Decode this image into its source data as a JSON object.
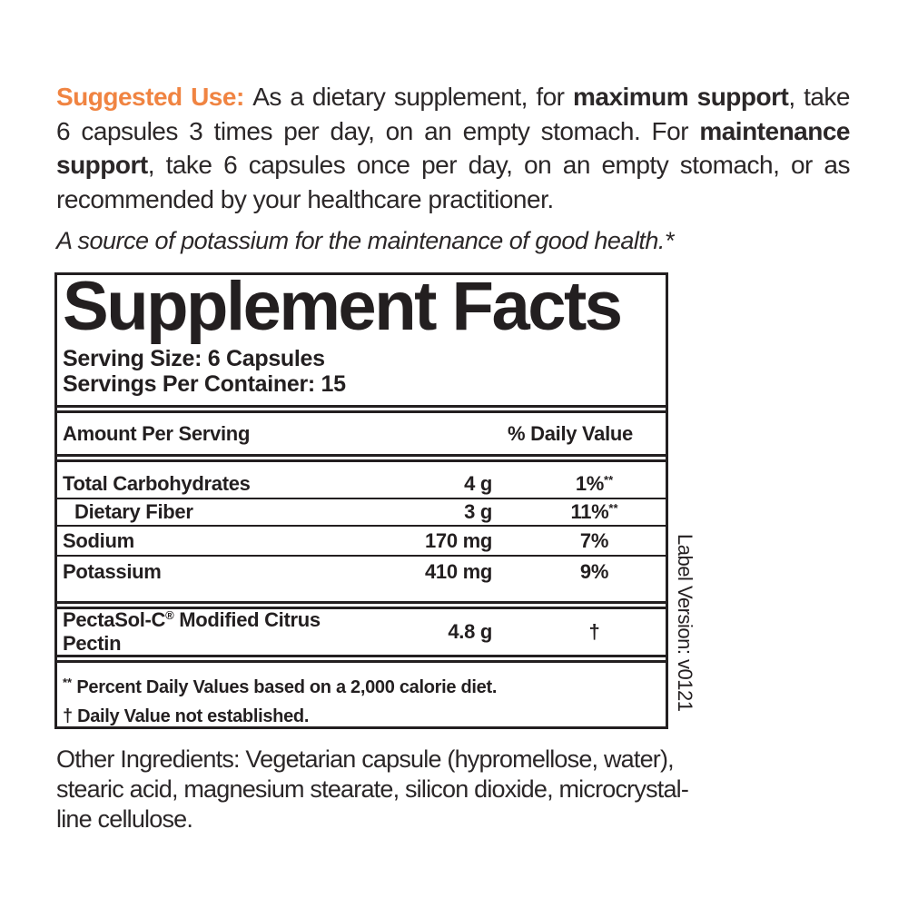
{
  "colors": {
    "accent_orange": "#f08442",
    "ink": "#231f20",
    "text": "#2b2728"
  },
  "suggested_use": {
    "lines": [
      {
        "segments": [
          {
            "text": "Suggested Use: "
          },
          {
            "text": "As a dietary supplement, for "
          },
          {
            "text": "maximum support"
          },
          {
            "text": ", take"
          }
        ]
      },
      {
        "segments": [
          {
            "text": "6 capsules 3 times per day, on an empty stomach. For "
          },
          {
            "text": "maintenance"
          }
        ]
      },
      {
        "segments": [
          {
            "text": "support"
          },
          {
            "text": ", take 6 capsules once per day, on an empty stomach, or as"
          }
        ]
      },
      {
        "segments": [
          {
            "text": "recommended by your healthcare practitioner."
          }
        ]
      }
    ]
  },
  "tagline": "A source of potassium for the maintenance of good health.*",
  "facts": {
    "title": "Supplement Facts",
    "serving_size": "Serving Size: 6 Capsules",
    "servings_per_container": "Servings Per Container: 15",
    "amount_header": "Amount Per Serving",
    "dv_header": "% Daily Value",
    "rows": [
      {
        "name": "Total Carbohydrates",
        "amount": "4 g",
        "dv": "1%",
        "dv_note": "**"
      },
      {
        "name": "Dietary Fiber",
        "amount": "3 g",
        "dv": "11%",
        "dv_note": "**"
      },
      {
        "name": "Sodium",
        "amount": "170 mg",
        "dv": "7%",
        "dv_note": ""
      },
      {
        "name": "Potassium",
        "amount": "410 mg",
        "dv": "9%",
        "dv_note": ""
      }
    ],
    "featured_row": {
      "name_brand": "PectaSol-C",
      "reg_mark": "®",
      "name_rest": " Modified Citrus Pectin",
      "amount": "4.8 g",
      "dv": "†"
    },
    "footnotes": {
      "dv_note_symbol": "**",
      "dv_note_text": " Percent Daily Values based on a 2,000 calorie diet.",
      "dagger_line": "† Daily Value not established."
    }
  },
  "other_ingredients": "Other Ingredients: Vegetarian capsule (hypromellose, water),\nstearic acid, magnesium stearate, silicon dioxide, microcrystal-\nline cellulose.",
  "label_version": "Label Version: v0121"
}
